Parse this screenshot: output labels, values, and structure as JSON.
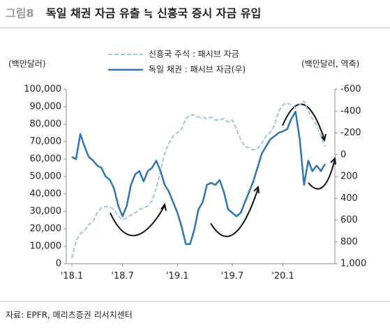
{
  "chart_data": {
    "type": "line",
    "figure_label": "그림8",
    "title": "독일 채권 자금 유출 ≒ 신흥국 증시 자금 유입",
    "y_label": "(백만달러)",
    "y2_label": "(백만달러, 역축)",
    "source": "자료: EPFR, 메리츠증권 리서치센터",
    "categories": [
      "'18.1",
      null,
      null,
      null,
      null,
      null,
      null,
      null,
      null,
      null,
      null,
      null,
      "'18.7",
      null,
      null,
      null,
      null,
      null,
      null,
      null,
      null,
      null,
      null,
      null,
      null,
      "'19.1",
      null,
      null,
      null,
      null,
      null,
      null,
      null,
      null,
      null,
      null,
      null,
      null,
      "'19.7",
      null,
      null,
      null,
      null,
      null,
      null,
      null,
      null,
      null,
      null,
      null,
      "'20.1",
      null,
      null,
      null,
      null,
      null,
      null,
      null,
      null,
      null,
      null
    ],
    "series": [
      {
        "name": "신흥국 주식 : 패시브 자금",
        "color": "#9dc3e6",
        "dashed": true,
        "values": [
          3200,
          13200,
          17200,
          19200,
          22400,
          24000,
          29200,
          32000,
          32800,
          32400,
          31200,
          27200,
          25200,
          26400,
          28000,
          29200,
          31200,
          32000,
          33200,
          36000,
          43200,
          53200,
          63200,
          69200,
          73200,
          75200,
          77200,
          83200,
          85200,
          85200,
          84000,
          84000,
          83200,
          84000,
          82400,
          82400,
          83200,
          81200,
          82400,
          77200,
          71200,
          67200,
          66400,
          65200,
          66000,
          69200,
          73200,
          75200,
          79200,
          87200,
          91200,
          92000,
          91200,
          89200,
          91200,
          93200,
          87200,
          83200,
          79200,
          73200,
          67200
        ]
      },
      {
        "name": "독일 채권 : 패시브 자금(우)",
        "color": "#2e75b6",
        "axis": "y2",
        "values": [
          20,
          40,
          -190,
          -75,
          20,
          53,
          100,
          120,
          200,
          230,
          310,
          470,
          565,
          470,
          277,
          180,
          150,
          245,
          150,
          120,
          55,
          150,
          277,
          340,
          437,
          533,
          660,
          820,
          820,
          690,
          500,
          437,
          277,
          258,
          277,
          232,
          340,
          500,
          533,
          565,
          533,
          437,
          340,
          245,
          117,
          -11,
          -75,
          -140,
          -170,
          -200,
          -215,
          -235,
          -330,
          -395,
          -140,
          277,
          55,
          150,
          100,
          150,
          85
        ]
      }
    ],
    "ylim": [
      0,
      100000
    ],
    "yticks": [
      0,
      {
        "value": 10000,
        "label": "10,000"
      },
      {
        "value": 20000,
        "label": "20,000"
      },
      {
        "value": 30000,
        "label": "30,000"
      },
      {
        "value": 40000,
        "label": "40,000"
      },
      {
        "value": 50000,
        "label": "50,000"
      },
      {
        "value": 60000,
        "label": "60,000"
      },
      {
        "value": 70000,
        "label": "70,000"
      },
      {
        "value": 80000,
        "label": "80,000"
      },
      {
        "value": 90000,
        "label": "90,000"
      },
      {
        "value": 100000,
        "label": "100,000"
      }
    ],
    "y2lim": [
      -600,
      1000
    ],
    "y2_inverted": true,
    "y2ticks": [
      -600,
      -400,
      -200,
      0,
      200,
      400,
      600,
      800,
      {
        "value": 1000,
        "label": "1,000"
      }
    ],
    "grid": false,
    "legend": "top"
  }
}
